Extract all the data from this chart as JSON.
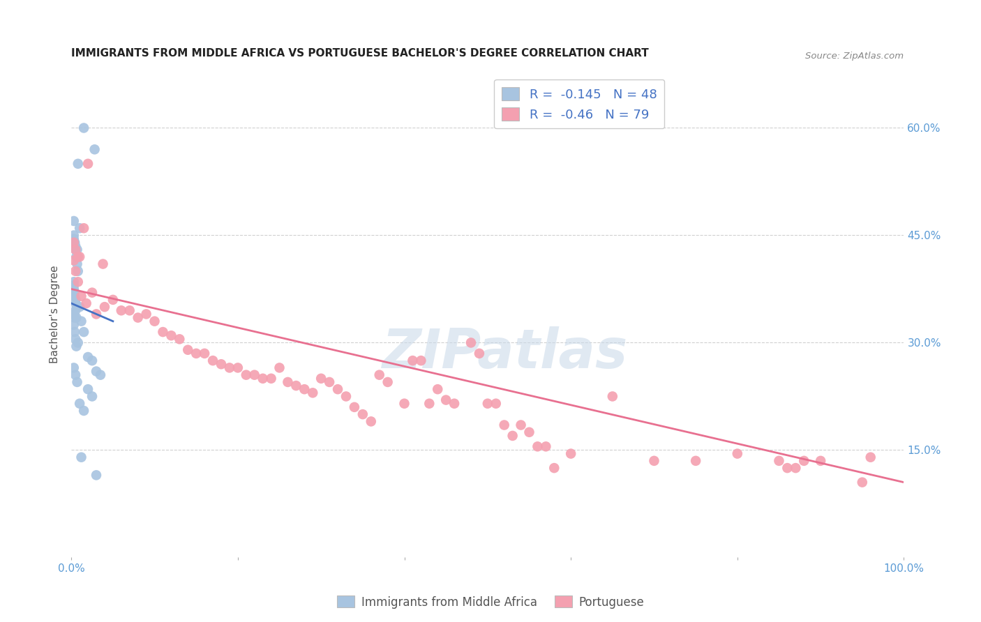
{
  "title": "IMMIGRANTS FROM MIDDLE AFRICA VS PORTUGUESE BACHELOR'S DEGREE CORRELATION CHART",
  "source": "Source: ZipAtlas.com",
  "ylabel": "Bachelor's Degree",
  "xlim": [
    0.0,
    1.0
  ],
  "ylim": [
    0.0,
    0.68
  ],
  "yticks": [
    0.15,
    0.3,
    0.45,
    0.6
  ],
  "ytick_labels": [
    "15.0%",
    "30.0%",
    "45.0%",
    "60.0%"
  ],
  "xticks": [
    0.0,
    0.2,
    0.4,
    0.6,
    0.8,
    1.0
  ],
  "xtick_labels": [
    "0.0%",
    "",
    "",
    "",
    "",
    "100.0%"
  ],
  "blue_R": -0.145,
  "blue_N": 48,
  "pink_R": -0.46,
  "pink_N": 79,
  "blue_color": "#a8c4e0",
  "pink_color": "#f4a0b0",
  "blue_line_color": "#4472c4",
  "pink_line_color": "#e87090",
  "legend_label_blue": "Immigrants from Middle Africa",
  "legend_label_pink": "Portuguese",
  "watermark": "ZIPatlas",
  "blue_line_x": [
    0.0,
    0.05
  ],
  "blue_line_y": [
    0.355,
    0.33
  ],
  "pink_line_x": [
    0.0,
    1.0
  ],
  "pink_line_y": [
    0.375,
    0.105
  ],
  "blue_scatter_x": [
    0.008,
    0.015,
    0.028,
    0.003,
    0.01,
    0.003,
    0.004,
    0.005,
    0.006,
    0.007,
    0.008,
    0.003,
    0.003,
    0.004,
    0.005,
    0.005,
    0.006,
    0.003,
    0.004,
    0.005,
    0.007,
    0.003,
    0.004,
    0.003,
    0.004,
    0.005,
    0.006,
    0.008,
    0.01,
    0.012,
    0.015,
    0.02,
    0.025,
    0.03,
    0.035,
    0.003,
    0.005,
    0.007,
    0.01,
    0.015,
    0.02,
    0.025,
    0.03,
    0.003,
    0.004,
    0.005,
    0.007,
    0.012
  ],
  "blue_scatter_y": [
    0.55,
    0.6,
    0.57,
    0.47,
    0.46,
    0.45,
    0.44,
    0.43,
    0.42,
    0.41,
    0.4,
    0.385,
    0.375,
    0.365,
    0.355,
    0.345,
    0.335,
    0.38,
    0.37,
    0.36,
    0.35,
    0.34,
    0.335,
    0.325,
    0.315,
    0.305,
    0.295,
    0.3,
    0.35,
    0.33,
    0.315,
    0.28,
    0.275,
    0.26,
    0.255,
    0.265,
    0.255,
    0.245,
    0.215,
    0.205,
    0.235,
    0.225,
    0.115,
    0.445,
    0.44,
    0.435,
    0.43,
    0.14
  ],
  "pink_scatter_x": [
    0.003,
    0.02,
    0.015,
    0.038,
    0.005,
    0.008,
    0.01,
    0.003,
    0.005,
    0.008,
    0.012,
    0.018,
    0.025,
    0.03,
    0.04,
    0.05,
    0.06,
    0.07,
    0.08,
    0.09,
    0.1,
    0.11,
    0.12,
    0.13,
    0.14,
    0.15,
    0.16,
    0.17,
    0.18,
    0.19,
    0.2,
    0.21,
    0.22,
    0.23,
    0.24,
    0.25,
    0.26,
    0.27,
    0.28,
    0.29,
    0.3,
    0.31,
    0.32,
    0.33,
    0.34,
    0.35,
    0.36,
    0.37,
    0.38,
    0.4,
    0.41,
    0.42,
    0.43,
    0.44,
    0.45,
    0.46,
    0.48,
    0.49,
    0.5,
    0.51,
    0.52,
    0.53,
    0.54,
    0.55,
    0.56,
    0.57,
    0.58,
    0.6,
    0.65,
    0.7,
    0.75,
    0.8,
    0.85,
    0.86,
    0.87,
    0.88,
    0.9,
    0.95,
    0.96
  ],
  "pink_scatter_y": [
    0.44,
    0.55,
    0.46,
    0.41,
    0.43,
    0.42,
    0.42,
    0.415,
    0.4,
    0.385,
    0.365,
    0.355,
    0.37,
    0.34,
    0.35,
    0.36,
    0.345,
    0.345,
    0.335,
    0.34,
    0.33,
    0.315,
    0.31,
    0.305,
    0.29,
    0.285,
    0.285,
    0.275,
    0.27,
    0.265,
    0.265,
    0.255,
    0.255,
    0.25,
    0.25,
    0.265,
    0.245,
    0.24,
    0.235,
    0.23,
    0.25,
    0.245,
    0.235,
    0.225,
    0.21,
    0.2,
    0.19,
    0.255,
    0.245,
    0.215,
    0.275,
    0.275,
    0.215,
    0.235,
    0.22,
    0.215,
    0.3,
    0.285,
    0.215,
    0.215,
    0.185,
    0.17,
    0.185,
    0.175,
    0.155,
    0.155,
    0.125,
    0.145,
    0.225,
    0.135,
    0.135,
    0.145,
    0.135,
    0.125,
    0.125,
    0.135,
    0.135,
    0.105,
    0.14
  ]
}
